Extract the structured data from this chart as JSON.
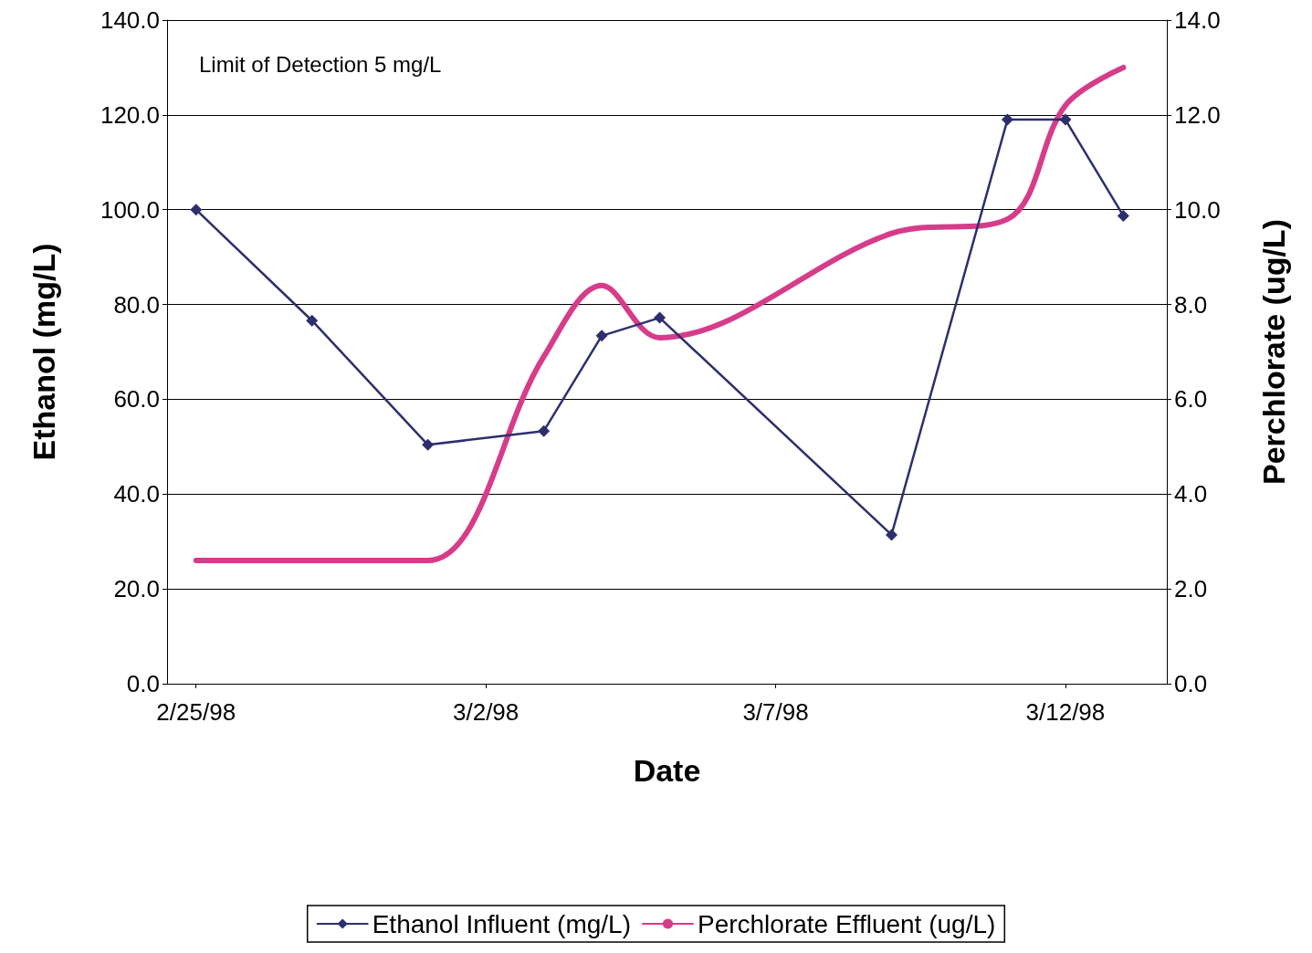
{
  "chart_data": {
    "type": "line",
    "xlabel": "Date",
    "ylabel": "Ethanol (mg/L)",
    "y2label": "Perchlorate (ug/L)",
    "annotations": [
      "Limit of Detection 5 mg/L"
    ],
    "x": [
      "1998-02-25",
      "1998-02-27",
      "1998-03-01",
      "1998-03-03",
      "1998-03-04",
      "1998-03-05",
      "1998-03-09",
      "1998-03-11",
      "1998-03-12",
      "1998-03-13"
    ],
    "series": [
      {
        "name": "Ethanol Influent (mg/L)",
        "color": "#2e2e6e",
        "marker": "diamond",
        "values": [
          100,
          76.6,
          50.4,
          53.3,
          73.4,
          77.2,
          31.4,
          119,
          119,
          98.7
        ]
      },
      {
        "name": "Perchlorate Effluent (ug/L)",
        "color": "#d63c8a",
        "marker": "none",
        "axis": "y2",
        "values": [
          2.6,
          2.6,
          2.6,
          6.9,
          8.4,
          7.3,
          9.5,
          9.8,
          12.2,
          13.0
        ]
      }
    ],
    "xlim": [
      "1998-02-24T12:00",
      "1998-03-13T18:00"
    ],
    "xticks": [
      {
        "value": "1998-02-25",
        "label": "2/25/98"
      },
      {
        "value": "1998-03-02",
        "label": "3/2/98"
      },
      {
        "value": "1998-03-07",
        "label": "3/7/98"
      },
      {
        "value": "1998-03-12",
        "label": "3/12/98"
      }
    ],
    "ylim": [
      0,
      140
    ],
    "yticks": [
      {
        "value": 0,
        "label": "0.0"
      },
      {
        "value": 20,
        "label": "20.0"
      },
      {
        "value": 40,
        "label": "40.0"
      },
      {
        "value": 60,
        "label": "60.0"
      },
      {
        "value": 80,
        "label": "80.0"
      },
      {
        "value": 100,
        "label": "100.0"
      },
      {
        "value": 120,
        "label": "120.0"
      },
      {
        "value": 140,
        "label": "140.0"
      }
    ],
    "y2lim": [
      0,
      14
    ],
    "y2ticks": [
      {
        "value": 0,
        "label": "0.0"
      },
      {
        "value": 2,
        "label": "2.0"
      },
      {
        "value": 4,
        "label": "4.0"
      },
      {
        "value": 6,
        "label": "6.0"
      },
      {
        "value": 8,
        "label": "8.0"
      },
      {
        "value": 10,
        "label": "10.0"
      },
      {
        "value": 12,
        "label": "12.0"
      },
      {
        "value": 14,
        "label": "14.0"
      }
    ],
    "grid": "y",
    "legend": "bottom",
    "line_style": "solid"
  }
}
